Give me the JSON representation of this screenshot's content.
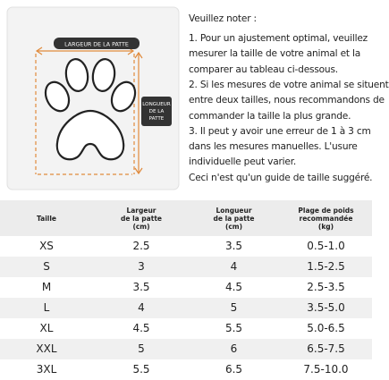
{
  "diagram": {
    "width_label": "LARGEUR DE LA PATTE",
    "length_label": [
      "LONGUEUR",
      "DE LA",
      "PATTE"
    ]
  },
  "notes": {
    "title": "Veuillez noter :",
    "lines": [
      "1. Pour un ajustement optimal, veuillez",
      "mesurer la taille de votre animal et la",
      "comparer au tableau ci-dessous.",
      "2. Si les mesures de votre animal se situent",
      "entre deux tailles, nous recommandons de",
      "commander la taille la plus grande.",
      "3. Il peut y avoir une erreur de 1 à 3 cm",
      "dans les mesures manuelles. L'usure",
      "individuelle peut varier.",
      "Ceci n'est qu'un guide de taille suggéré."
    ]
  },
  "table": {
    "header": [
      [
        "Taille"
      ],
      [
        "Largeur",
        "de la patte",
        "(cm)"
      ],
      [
        "Longueur",
        "de la patte",
        "(cm)"
      ],
      [
        "Plage de poids",
        "recommandée",
        "(kg)"
      ]
    ],
    "rows": [
      [
        "XS",
        "2.5",
        "3.5",
        "0.5-1.0"
      ],
      [
        "S",
        "3",
        "4",
        "1.5-2.5"
      ],
      [
        "M",
        "3.5",
        "4.5",
        "2.5-3.5"
      ],
      [
        "L",
        "4",
        "5",
        "3.5-5.0"
      ],
      [
        "XL",
        "4.5",
        "5.5",
        "5.0-6.5"
      ],
      [
        "XXL",
        "5",
        "6",
        "6.5-7.5"
      ],
      [
        "3XL",
        "5.5",
        "6.5",
        "7.5-10.0"
      ]
    ]
  }
}
